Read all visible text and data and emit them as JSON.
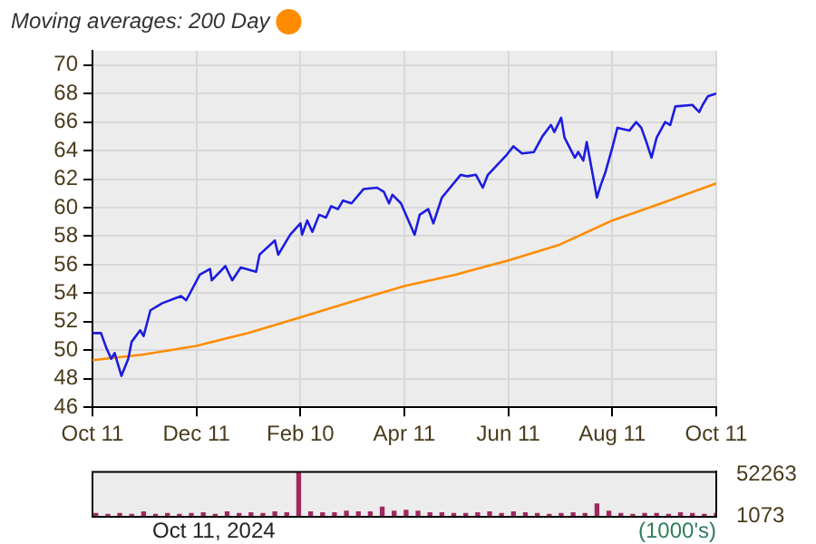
{
  "chart_data": [
    {
      "type": "line",
      "legend": "top left",
      "grid": true,
      "marker": "none",
      "line_style": "solid",
      "xlim": [
        "2023-10-11",
        "2024-10-11"
      ],
      "xticks": [
        {
          "value": "2023-10-11",
          "label": "Oct 11"
        },
        {
          "value": "2023-12-11",
          "label": "Dec 11"
        },
        {
          "value": "2024-02-10",
          "label": "Feb 10"
        },
        {
          "value": "2024-04-11",
          "label": "Apr 11"
        },
        {
          "value": "2024-06-11",
          "label": "Jun 11"
        },
        {
          "value": "2024-08-11",
          "label": "Aug 11"
        },
        {
          "value": "2024-10-11",
          "label": "Oct 11"
        }
      ],
      "ylim": [
        46,
        71
      ],
      "yticks": [
        46,
        48,
        50,
        52,
        54,
        56,
        58,
        60,
        62,
        64,
        66,
        68,
        70
      ],
      "series": [
        {
          "color": "#1c1ce0",
          "x": [
            "2023-10-11",
            "2023-10-16",
            "2023-10-19",
            "2023-10-22",
            "2023-10-24",
            "2023-10-28",
            "2023-11-01",
            "2023-11-03",
            "2023-11-08",
            "2023-11-10",
            "2023-11-14",
            "2023-11-21",
            "2023-12-02",
            "2023-12-05",
            "2023-12-13",
            "2023-12-19",
            "2023-12-20",
            "2023-12-28",
            "2024-01-01",
            "2024-01-06",
            "2024-01-15",
            "2024-01-17",
            "2024-01-26",
            "2024-01-28",
            "2024-02-04",
            "2024-02-10",
            "2024-02-11",
            "2024-02-14",
            "2024-02-17",
            "2024-02-21",
            "2024-02-25",
            "2024-02-28",
            "2024-03-03",
            "2024-03-06",
            "2024-03-11",
            "2024-03-18",
            "2024-03-26",
            "2024-03-30",
            "2024-04-02",
            "2024-04-04",
            "2024-04-09",
            "2024-04-17",
            "2024-04-20",
            "2024-04-25",
            "2024-04-28",
            "2024-05-03",
            "2024-05-14",
            "2024-05-18",
            "2024-05-23",
            "2024-05-27",
            "2024-05-30",
            "2024-06-10",
            "2024-06-14",
            "2024-06-19",
            "2024-06-26",
            "2024-07-01",
            "2024-07-06",
            "2024-07-08",
            "2024-07-12",
            "2024-07-14",
            "2024-07-20",
            "2024-07-22",
            "2024-07-25",
            "2024-07-27",
            "2024-08-02",
            "2024-08-04",
            "2024-08-07",
            "2024-08-11",
            "2024-08-14",
            "2024-08-21",
            "2024-08-25",
            "2024-08-28",
            "2024-08-31",
            "2024-09-03",
            "2024-09-06",
            "2024-09-11",
            "2024-09-14",
            "2024-09-17",
            "2024-09-27",
            "2024-10-01",
            "2024-10-03",
            "2024-10-06",
            "2024-10-11"
          ],
          "values": [
            51.2,
            51.2,
            50.2,
            49.4,
            49.8,
            48.2,
            49.4,
            50.6,
            51.4,
            51.0,
            52.8,
            53.3,
            53.8,
            53.5,
            55.3,
            55.7,
            54.9,
            55.9,
            54.9,
            55.8,
            55.5,
            56.7,
            57.7,
            56.7,
            58.1,
            58.9,
            58.1,
            59.1,
            58.3,
            59.5,
            59.3,
            60.1,
            59.9,
            60.5,
            60.3,
            61.3,
            61.4,
            61.1,
            60.3,
            60.9,
            60.3,
            58.1,
            59.5,
            59.9,
            58.9,
            60.7,
            62.3,
            62.2,
            62.3,
            61.4,
            62.3,
            63.7,
            64.3,
            63.8,
            63.9,
            65.0,
            65.8,
            65.3,
            66.3,
            64.9,
            63.5,
            63.9,
            63.3,
            64.6,
            60.7,
            61.5,
            62.5,
            64.2,
            65.6,
            65.4,
            66.0,
            65.6,
            64.6,
            63.5,
            64.9,
            66.0,
            65.8,
            67.1,
            67.2,
            66.7,
            67.2,
            67.8,
            68.0
          ]
        },
        {
          "name": "Moving averages: 200 Day",
          "color": "#ff8c00",
          "x": [
            "2023-10-11",
            "2023-11-10",
            "2023-12-11",
            "2024-01-10",
            "2024-02-10",
            "2024-03-11",
            "2024-04-11",
            "2024-05-11",
            "2024-06-11",
            "2024-07-11",
            "2024-08-11",
            "2024-09-11",
            "2024-10-11"
          ],
          "values": [
            49.3,
            49.7,
            50.3,
            51.2,
            52.3,
            53.4,
            54.5,
            55.3,
            56.3,
            57.4,
            59.1,
            60.4,
            61.7
          ]
        }
      ]
    },
    {
      "type": "bar",
      "tick_labels": "y",
      "xlim": [
        "2023-10-11",
        "2024-10-11"
      ],
      "ylim": [
        0,
        56000
      ],
      "yticks": [
        52263,
        1073
      ],
      "color": "#a02860",
      "x": [
        "2023-10-13",
        "2023-10-20",
        "2023-10-27",
        "2023-11-03",
        "2023-11-10",
        "2023-11-17",
        "2023-11-24",
        "2023-12-01",
        "2023-12-08",
        "2023-12-15",
        "2023-12-22",
        "2023-12-29",
        "2024-01-05",
        "2024-01-12",
        "2024-01-19",
        "2024-01-26",
        "2024-02-02",
        "2024-02-09",
        "2024-02-16",
        "2024-02-23",
        "2024-03-01",
        "2024-03-08",
        "2024-03-15",
        "2024-03-22",
        "2024-03-29",
        "2024-04-05",
        "2024-04-12",
        "2024-04-19",
        "2024-04-26",
        "2024-05-03",
        "2024-05-10",
        "2024-05-17",
        "2024-05-24",
        "2024-05-31",
        "2024-06-07",
        "2024-06-14",
        "2024-06-21",
        "2024-06-28",
        "2024-07-05",
        "2024-07-12",
        "2024-07-19",
        "2024-07-26",
        "2024-08-02",
        "2024-08-09",
        "2024-08-16",
        "2024-08-23",
        "2024-08-30",
        "2024-09-06",
        "2024-09-13",
        "2024-09-20",
        "2024-09-27",
        "2024-10-04",
        "2024-10-11"
      ],
      "values": [
        4000,
        3000,
        4000,
        3000,
        6000,
        3000,
        4000,
        3000,
        4000,
        5000,
        3000,
        6000,
        4000,
        5000,
        4000,
        6000,
        5000,
        56000,
        6000,
        5000,
        5000,
        7000,
        6000,
        6000,
        12000,
        7000,
        8000,
        7000,
        5000,
        5000,
        4000,
        4000,
        5000,
        6000,
        4000,
        6000,
        5000,
        4000,
        3000,
        4000,
        5000,
        4000,
        16000,
        7000,
        4000,
        3000,
        4000,
        4000,
        3000,
        5000,
        4000,
        3000,
        4000
      ],
      "annotations": [
        "Oct 11, 2024",
        "(1000's)"
      ]
    }
  ]
}
